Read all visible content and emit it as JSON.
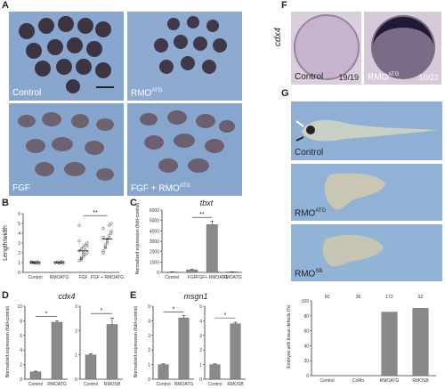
{
  "panels": {
    "A": {
      "letter": "A",
      "images": [
        {
          "caption": "Control"
        },
        {
          "caption": "RMO",
          "sup": "ATG"
        },
        {
          "caption": "FGF"
        },
        {
          "caption": "FGF + RMO",
          "sup": "ATG"
        }
      ]
    },
    "B": {
      "letter": "B",
      "ylabel": "Length/width",
      "categories": [
        "Control",
        "RMO",
        "FGF",
        "FGF + RMO"
      ],
      "category_sups": [
        "",
        "ATG",
        "",
        "ATG"
      ],
      "significance": "**"
    },
    "C": {
      "letter": "C",
      "gene": "tbxt",
      "ylabel": "Normalized expression (fold-control)",
      "significance": "**"
    },
    "D": {
      "letter": "D",
      "gene": "cdx4",
      "ylabel": "Normalized expression (fold-control)",
      "significance": "*"
    },
    "E": {
      "letter": "E",
      "gene": "msgn1",
      "ylabel": "Normalized expression (fold-control)",
      "significance": "*"
    },
    "F": {
      "letter": "F",
      "gene": "cdx4",
      "images": [
        {
          "caption": "Control",
          "count": "19/19"
        },
        {
          "caption": "RMO",
          "sup": "ATG",
          "count": "10/22"
        }
      ]
    },
    "G": {
      "letter": "G",
      "images": [
        {
          "caption": "Control"
        },
        {
          "caption": "RMO",
          "sup": "ATG"
        },
        {
          "caption": "RMO",
          "sup": "SB"
        }
      ],
      "ylabel": "Embryos with tissue defects (%)"
    }
  },
  "chart_data": [
    {
      "panel": "B",
      "type": "scatter",
      "categories": [
        "Control",
        "RMOATG",
        "FGF",
        "FGF + RMOATG"
      ],
      "ylabel": "Length/width",
      "yticks": [
        0,
        1,
        2,
        3,
        4,
        5,
        6
      ],
      "ylim": [
        0,
        6
      ],
      "series": [
        {
          "category": "Control",
          "values": [
            1.0,
            1.05,
            0.95,
            1.1,
            0.9,
            1.0,
            1.05,
            1.0,
            0.98,
            1.02,
            1.08,
            0.96
          ]
        },
        {
          "category": "RMOATG",
          "values": [
            1.0,
            1.05,
            0.95,
            1.1,
            0.92,
            1.0,
            1.04,
            0.98,
            1.02,
            1.06
          ]
        },
        {
          "category": "FGF",
          "values": [
            1.2,
            1.4,
            1.6,
            1.8,
            2.0,
            2.2,
            2.4,
            2.6,
            2.8,
            3.0,
            3.2,
            1.5,
            1.9,
            2.3,
            2.7,
            4.8,
            1.3,
            2.1
          ]
        },
        {
          "category": "FGF + RMOATG",
          "values": [
            2.0,
            2.5,
            3.0,
            3.5,
            4.0,
            4.5,
            2.8,
            3.2,
            3.8,
            4.2,
            2.2,
            2.6,
            3.4,
            4.8,
            5.0,
            3.6
          ]
        }
      ],
      "means": [
        1.0,
        1.0,
        2.2,
        3.4
      ]
    },
    {
      "panel": "C",
      "type": "bar",
      "title": "tbxt",
      "categories": [
        "Control",
        "FGF",
        "FGF+ RMOATG",
        "RMOATG"
      ],
      "values": [
        40,
        250,
        4600,
        50
      ],
      "errors": [
        10,
        40,
        350,
        10
      ],
      "ylim": [
        0,
        6000
      ],
      "yticks": [
        0,
        1000,
        2000,
        3000,
        4000,
        5000,
        6000
      ]
    },
    {
      "panel": "D-left",
      "type": "bar",
      "title": "cdx4",
      "categories": [
        "Control",
        "RMOATG"
      ],
      "values": [
        1.0,
        7.8
      ],
      "errors": [
        0.1,
        0.2
      ],
      "ylim": [
        0,
        10
      ],
      "yticks": [
        0,
        2,
        4,
        6,
        8,
        10
      ]
    },
    {
      "panel": "D-right",
      "type": "bar",
      "categories": [
        "Control",
        "RMOSB"
      ],
      "values": [
        1.0,
        2.25
      ],
      "errors": [
        0.05,
        0.25
      ],
      "ylim": [
        0,
        3
      ],
      "yticks": [
        0,
        1,
        2,
        3
      ]
    },
    {
      "panel": "E-left",
      "type": "bar",
      "title": "msgn1",
      "categories": [
        "Control",
        "RMOATG"
      ],
      "values": [
        1.0,
        4.2
      ],
      "errors": [
        0.05,
        0.15
      ],
      "ylim": [
        0,
        5
      ],
      "yticks": [
        0,
        1,
        2,
        3,
        4,
        5
      ]
    },
    {
      "panel": "E-right",
      "type": "bar",
      "categories": [
        "Control",
        "RMOSB"
      ],
      "values": [
        1.0,
        3.8
      ],
      "errors": [
        0.05,
        0.1
      ],
      "ylim": [
        0,
        5
      ],
      "yticks": [
        0,
        1,
        2,
        3,
        4,
        5
      ]
    },
    {
      "panel": "G",
      "type": "bar",
      "ylabel": "Embryos with tissue defects (%)",
      "categories": [
        "Control",
        "CoMo",
        "RMOATG",
        "RMOSB"
      ],
      "values": [
        0,
        0,
        85,
        90
      ],
      "n_labels": [
        "60",
        "36",
        "172",
        "62"
      ],
      "ylim": [
        0,
        100
      ],
      "yticks": [
        0,
        20,
        40,
        60,
        80,
        100
      ]
    }
  ],
  "colors": {
    "bar": "#8a8a8a",
    "photo_bg": "#8aa9cf",
    "embryo": "#3b3340",
    "cdx4_bg": "#d8ccd8"
  }
}
